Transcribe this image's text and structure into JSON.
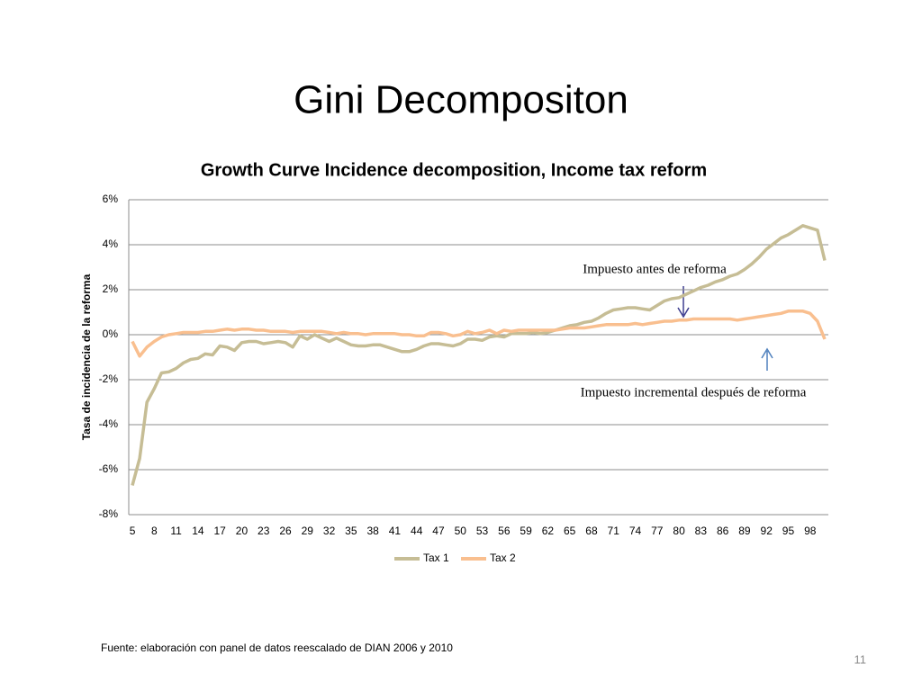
{
  "slide_title": "Gini Decompositon",
  "source": "Fuente: elaboración con panel de datos reescalado de DIAN 2006 y 2010",
  "page_number": "11",
  "chart_data": {
    "type": "line",
    "title": "Growth Curve Incidence decomposition, Income tax reform",
    "y_label": "Tasa de incidencia de la reforma",
    "x": [
      5,
      6,
      7,
      8,
      9,
      10,
      11,
      12,
      13,
      14,
      15,
      16,
      17,
      18,
      19,
      20,
      21,
      22,
      23,
      24,
      25,
      26,
      27,
      28,
      29,
      30,
      31,
      32,
      33,
      34,
      35,
      36,
      37,
      38,
      39,
      40,
      41,
      42,
      43,
      44,
      45,
      46,
      47,
      48,
      49,
      50,
      51,
      52,
      53,
      54,
      55,
      56,
      57,
      58,
      59,
      60,
      61,
      62,
      63,
      64,
      65,
      66,
      67,
      68,
      69,
      70,
      71,
      72,
      73,
      74,
      75,
      76,
      77,
      78,
      79,
      80,
      81,
      82,
      83,
      84,
      85,
      86,
      87,
      88,
      89,
      90,
      91,
      92,
      93,
      94,
      95,
      96,
      97,
      98,
      99,
      100
    ],
    "xlim": [
      4.5,
      100.5
    ],
    "xticks": [
      5,
      8,
      11,
      14,
      17,
      20,
      23,
      26,
      29,
      32,
      35,
      38,
      41,
      44,
      47,
      50,
      53,
      56,
      59,
      62,
      65,
      68,
      71,
      74,
      77,
      80,
      83,
      86,
      89,
      92,
      95,
      98
    ],
    "ylim": [
      -8,
      6
    ],
    "yticks": [
      {
        "value": -8,
        "label": "-8%"
      },
      {
        "value": -6,
        "label": "-6%"
      },
      {
        "value": -4,
        "label": "-4%"
      },
      {
        "value": -2,
        "label": "-2%"
      },
      {
        "value": 0,
        "label": "0%"
      },
      {
        "value": 2,
        "label": "2%"
      },
      {
        "value": 4,
        "label": "4%"
      },
      {
        "value": 6,
        "label": "6%"
      }
    ],
    "grid": true,
    "legend": "bottom",
    "series": [
      {
        "name": "Tax 1",
        "color": "#c6bd95",
        "values": [
          -6.7,
          -5.5,
          -3.0,
          -2.4,
          -1.7,
          -1.65,
          -1.5,
          -1.25,
          -1.1,
          -1.05,
          -0.85,
          -0.9,
          -0.5,
          -0.55,
          -0.7,
          -0.35,
          -0.3,
          -0.3,
          -0.4,
          -0.35,
          -0.3,
          -0.35,
          -0.55,
          -0.05,
          -0.2,
          0.0,
          -0.15,
          -0.3,
          -0.15,
          -0.3,
          -0.45,
          -0.5,
          -0.5,
          -0.45,
          -0.45,
          -0.55,
          -0.65,
          -0.75,
          -0.75,
          -0.65,
          -0.5,
          -0.4,
          -0.4,
          -0.45,
          -0.5,
          -0.4,
          -0.2,
          -0.2,
          -0.25,
          -0.1,
          -0.05,
          -0.1,
          0.05,
          0.05,
          0.05,
          0.1,
          0.05,
          0.1,
          0.2,
          0.3,
          0.4,
          0.45,
          0.55,
          0.6,
          0.75,
          0.95,
          1.1,
          1.15,
          1.2,
          1.2,
          1.15,
          1.1,
          1.3,
          1.5,
          1.6,
          1.65,
          1.8,
          1.95,
          2.1,
          2.2,
          2.35,
          2.45,
          2.6,
          2.7,
          2.9,
          3.15,
          3.45,
          3.8,
          4.05,
          4.3,
          4.45,
          4.65,
          4.85,
          4.75,
          4.65,
          3.3
        ]
      },
      {
        "name": "Tax 2",
        "color": "#f9bf8f",
        "values": [
          -0.3,
          -0.95,
          -0.55,
          -0.3,
          -0.1,
          0.0,
          0.05,
          0.1,
          0.1,
          0.1,
          0.15,
          0.15,
          0.2,
          0.25,
          0.2,
          0.25,
          0.25,
          0.2,
          0.2,
          0.15,
          0.15,
          0.15,
          0.1,
          0.15,
          0.15,
          0.15,
          0.15,
          0.1,
          0.05,
          0.1,
          0.05,
          0.05,
          0.0,
          0.05,
          0.05,
          0.05,
          0.05,
          0.0,
          0.0,
          -0.05,
          -0.05,
          0.1,
          0.1,
          0.05,
          -0.05,
          0.0,
          0.15,
          0.05,
          0.1,
          0.2,
          0.05,
          0.2,
          0.15,
          0.2,
          0.2,
          0.2,
          0.2,
          0.2,
          0.2,
          0.25,
          0.3,
          0.3,
          0.3,
          0.35,
          0.4,
          0.45,
          0.45,
          0.45,
          0.45,
          0.5,
          0.45,
          0.5,
          0.55,
          0.6,
          0.6,
          0.65,
          0.65,
          0.7,
          0.7,
          0.7,
          0.7,
          0.7,
          0.7,
          0.65,
          0.7,
          0.75,
          0.8,
          0.85,
          0.9,
          0.95,
          1.05,
          1.05,
          1.05,
          0.95,
          0.6,
          -0.2
        ]
      }
    ],
    "annotations": [
      "Impuesto antes de reforma",
      "Impuesto incremental después de reforma"
    ]
  }
}
